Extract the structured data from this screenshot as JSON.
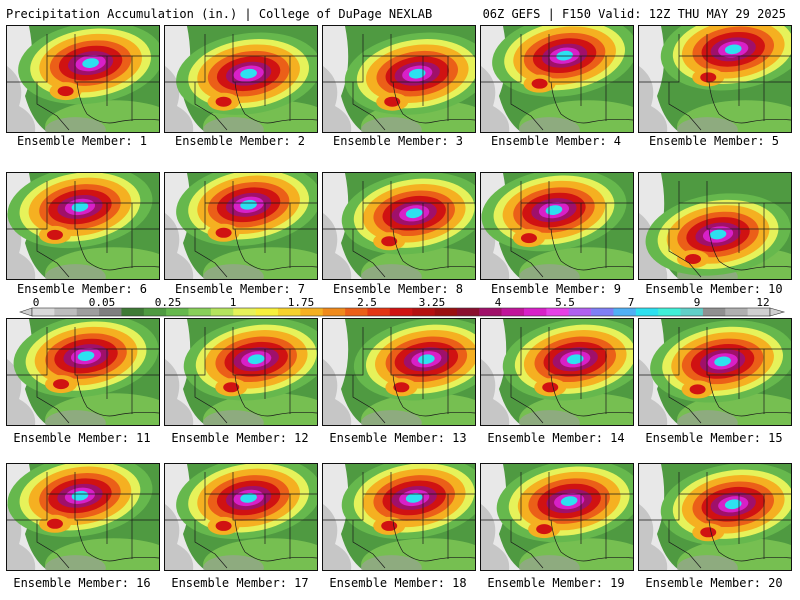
{
  "header": {
    "left": "Precipitation Accumulation (in.) | College of DuPage NEXLAB",
    "right": "06Z GEFS | F150 Valid: 12Z THU MAY 29 2025"
  },
  "panels": [
    {
      "label": "Ensemble Member: 1"
    },
    {
      "label": "Ensemble Member: 2"
    },
    {
      "label": "Ensemble Member: 3"
    },
    {
      "label": "Ensemble Member: 4"
    },
    {
      "label": "Ensemble Member: 5"
    },
    {
      "label": "Ensemble Member: 6"
    },
    {
      "label": "Ensemble Member: 7"
    },
    {
      "label": "Ensemble Member: 8"
    },
    {
      "label": "Ensemble Member: 9"
    },
    {
      "label": "Ensemble Member: 10"
    },
    {
      "label": "Ensemble Member: 11"
    },
    {
      "label": "Ensemble Member: 12"
    },
    {
      "label": "Ensemble Member: 13"
    },
    {
      "label": "Ensemble Member: 14"
    },
    {
      "label": "Ensemble Member: 15"
    },
    {
      "label": "Ensemble Member: 16"
    },
    {
      "label": "Ensemble Member: 17"
    },
    {
      "label": "Ensemble Member: 18"
    },
    {
      "label": "Ensemble Member: 19"
    },
    {
      "label": "Ensemble Member: 20"
    }
  ],
  "colorbar": {
    "ticks": [
      "0",
      "0.05",
      "0.25",
      "1",
      "1.75",
      "2.5",
      "3.25",
      "4",
      "5.5",
      "7",
      "9",
      "12"
    ],
    "colors": [
      "#d9d9d9",
      "#bdbdbd",
      "#9e9e9e",
      "#7f7f7f",
      "#3e7a35",
      "#4f9a41",
      "#66b84d",
      "#88cf59",
      "#b4e35e",
      "#e6f25a",
      "#f7f03c",
      "#f7d22c",
      "#f5b021",
      "#f08a1c",
      "#eb5f18",
      "#e33614",
      "#d01212",
      "#b51010",
      "#9a1010",
      "#8a0f2f",
      "#a0106a",
      "#c0159a",
      "#d820c8",
      "#e640e6",
      "#b060f0",
      "#7f7ff5",
      "#50b0f5",
      "#2ee0f0",
      "#40f0d8",
      "#60d0c8",
      "#909090",
      "#b0b0b0",
      "#d0d0d0"
    ]
  }
}
